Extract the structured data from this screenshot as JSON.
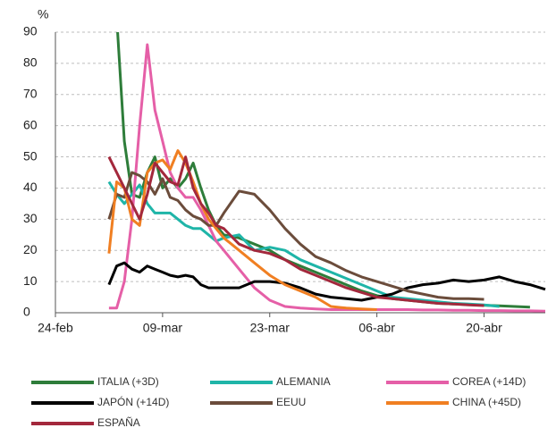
{
  "chart_data": {
    "type": "line",
    "y_unit": "%",
    "x": [
      7,
      8,
      9,
      10,
      11,
      12,
      13,
      14,
      15,
      16,
      17,
      18,
      19,
      20,
      21,
      22,
      24,
      26,
      28,
      30,
      32,
      34,
      36,
      38,
      40,
      42,
      44,
      46,
      48,
      50,
      52,
      54,
      56,
      58,
      60,
      62,
      64
    ],
    "xlim": [
      0,
      64
    ],
    "xticks": [
      {
        "value": 0,
        "label": "24-feb"
      },
      {
        "value": 14,
        "label": "09-mar"
      },
      {
        "value": 28,
        "label": "23-mar"
      },
      {
        "value": 42,
        "label": "06-abr"
      },
      {
        "value": 56,
        "label": "20-abr"
      }
    ],
    "ylim": [
      0,
      90
    ],
    "yticks": [
      0,
      10,
      20,
      30,
      40,
      50,
      60,
      70,
      80,
      90
    ],
    "grid": true,
    "series": [
      {
        "name": "ITALIA (+3D)",
        "color": "#2e7d3a",
        "values": [
          null,
          95,
          55,
          38,
          37,
          45,
          50,
          40,
          43,
          40,
          43,
          48,
          40,
          33,
          28,
          25,
          24,
          22,
          20,
          17,
          15,
          13,
          11,
          9,
          7,
          5.5,
          4.5,
          4,
          3.5,
          3,
          2.8,
          2.6,
          2.4,
          2.2,
          2,
          1.8,
          null
        ]
      },
      {
        "name": "ALEMANIA",
        "color": "#1fb5a8",
        "values": [
          42,
          38,
          35,
          38,
          41,
          35,
          32,
          32,
          32,
          30,
          28,
          27,
          27,
          25,
          23,
          24,
          25,
          20,
          21,
          20,
          17,
          15,
          13,
          11,
          9,
          7,
          5,
          4.5,
          4,
          3.5,
          3,
          2.8,
          2.5,
          2,
          null,
          null,
          null
        ]
      },
      {
        "name": "COREA (+14D)",
        "color": "#e55fa7",
        "values": [
          1.5,
          1.5,
          10,
          30,
          60,
          86,
          65,
          55,
          45,
          40,
          37,
          37,
          33,
          28,
          23,
          20,
          14,
          8,
          4,
          2,
          1.5,
          1.2,
          1,
          1,
          1,
          1,
          1,
          1,
          0.9,
          0.9,
          0.8,
          0.8,
          0.7,
          0.7,
          0.6,
          0.6,
          0.5
        ]
      },
      {
        "name": "JAPÓN (+14D)",
        "color": "#000000",
        "values": [
          9,
          15,
          16,
          14,
          13,
          15,
          14,
          13,
          12,
          11.5,
          12,
          11.5,
          9,
          8,
          8,
          8,
          8,
          10,
          10,
          9.5,
          8,
          6,
          5,
          4.5,
          4,
          5,
          6,
          8,
          9,
          9.5,
          10.5,
          10,
          10.5,
          11.5,
          10,
          9,
          7.5
        ]
      },
      {
        "name": "EEUU",
        "color": "#6b4c3b",
        "values": [
          30,
          38,
          37,
          45,
          44,
          42,
          38,
          43,
          37,
          36,
          33,
          31,
          30,
          28,
          28,
          32,
          39,
          38,
          33,
          27,
          22,
          18,
          16,
          13.5,
          11.5,
          10,
          8.5,
          7,
          6,
          5,
          4.5,
          4.5,
          4.3,
          null,
          null,
          null,
          null
        ]
      },
      {
        "name": "CHINA (+45D)",
        "color": "#f07f22",
        "values": [
          19,
          42,
          40,
          30,
          28,
          45,
          48,
          49,
          46,
          52,
          48,
          42,
          35,
          30,
          27,
          24,
          20,
          16,
          12,
          9,
          7,
          5,
          2,
          1.5,
          1.2,
          1,
          null,
          null,
          null,
          null,
          null,
          null,
          null,
          null,
          null,
          null,
          null
        ]
      },
      {
        "name": "ESPAÑA",
        "color": "#a3283c",
        "values": [
          50,
          45,
          40,
          35,
          30,
          38,
          48,
          45,
          42,
          41,
          50,
          40,
          35,
          32,
          28,
          27,
          22,
          20,
          19,
          17,
          14,
          12,
          10,
          8,
          6.5,
          5,
          4.5,
          4,
          3.5,
          3,
          2.8,
          2.5,
          2.3,
          null,
          null,
          null,
          null
        ]
      }
    ]
  }
}
